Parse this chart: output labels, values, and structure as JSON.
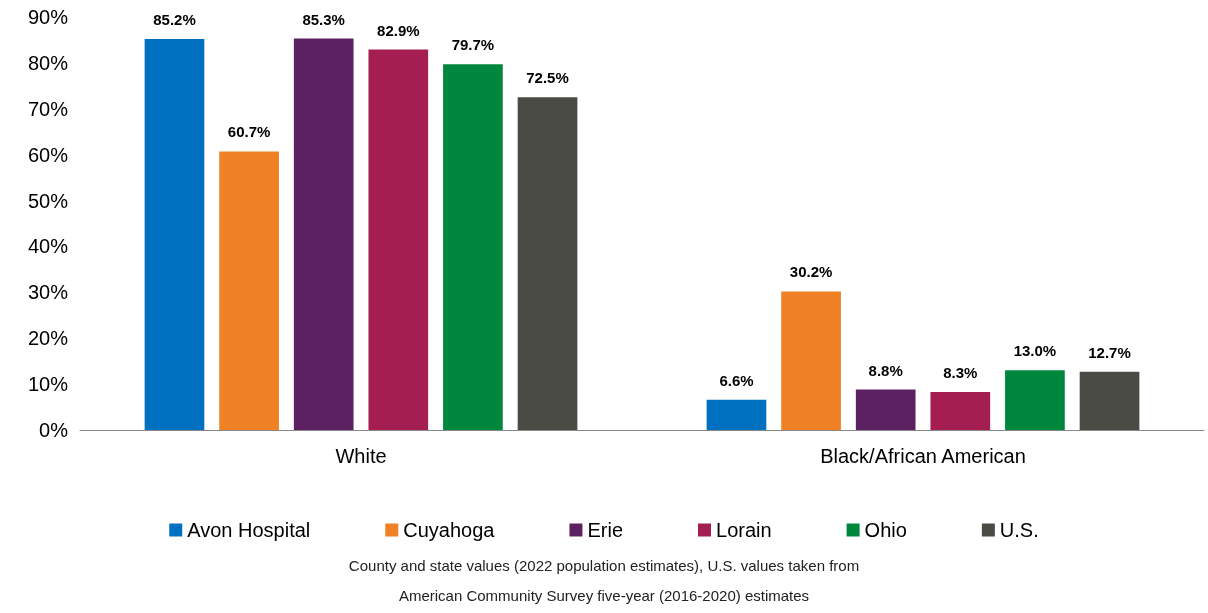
{
  "chart_data": {
    "type": "bar",
    "categories": [
      "White",
      "Black/African American"
    ],
    "series": [
      {
        "name": "Avon Hospital",
        "color": "#0070c0",
        "values": [
          85.2,
          6.6
        ],
        "value_labels": [
          "85.2%",
          "6.6%"
        ]
      },
      {
        "name": "Cuyahoga",
        "color": "#f08124",
        "values": [
          60.7,
          30.2
        ],
        "value_labels": [
          "60.7%",
          "30.2%"
        ]
      },
      {
        "name": "Erie",
        "color": "#5c2161",
        "values": [
          85.3,
          8.8
        ],
        "value_labels": [
          "85.3%",
          "8.8%"
        ]
      },
      {
        "name": "Lorain",
        "color": "#a51e51",
        "values": [
          82.9,
          8.3
        ],
        "value_labels": [
          "82.9%",
          "8.3%"
        ]
      },
      {
        "name": "Ohio",
        "color": "#00873e",
        "values": [
          79.7,
          13.0
        ],
        "value_labels": [
          "79.7%",
          "13.0%"
        ]
      },
      {
        "name": "U.S.",
        "color": "#4b4b45",
        "values": [
          72.5,
          12.7
        ],
        "value_labels": [
          "72.5%",
          "12.7%"
        ]
      }
    ],
    "ylim": [
      0,
      90
    ],
    "yticks": [
      {
        "value": 0,
        "label": "0%"
      },
      {
        "value": 10,
        "label": "10%"
      },
      {
        "value": 20,
        "label": "20%"
      },
      {
        "value": 30,
        "label": "30%"
      },
      {
        "value": 40,
        "label": "40%"
      },
      {
        "value": 50,
        "label": "50%"
      },
      {
        "value": 60,
        "label": "60%"
      },
      {
        "value": 70,
        "label": "70%"
      },
      {
        "value": 80,
        "label": "80%"
      },
      {
        "value": 90,
        "label": "90%"
      }
    ],
    "grid": false,
    "legend": "bottom",
    "annotations": [
      "County and state values (2022 population estimates), U.S. values taken from",
      "American Community Survey five-year (2016-2020) estimates"
    ]
  }
}
